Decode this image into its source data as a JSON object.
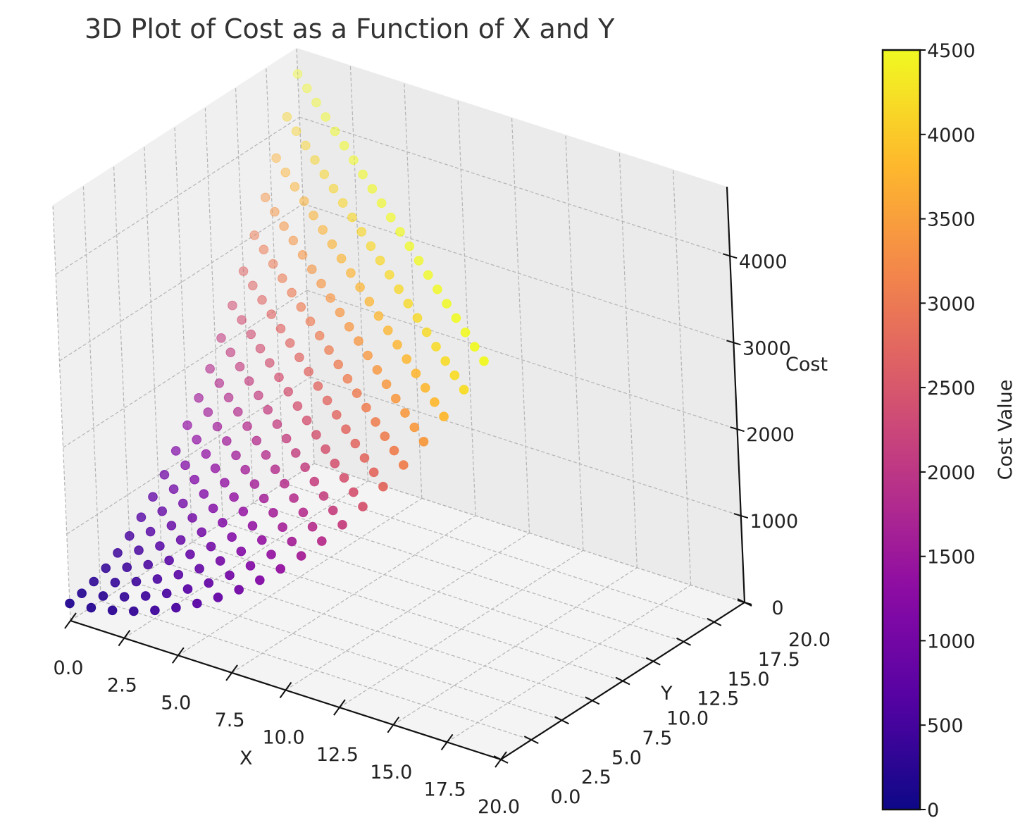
{
  "chart_data": {
    "type": "scatter3d",
    "title": "3D Plot of Cost as a Function of X and Y",
    "xlabel": "X",
    "ylabel": "Y",
    "zlabel": "Cost",
    "colorbar_label": "Cost Value",
    "colormap": "plasma",
    "x_ticks": [
      "0.0",
      "2.5",
      "5.0",
      "7.5",
      "10.0",
      "12.5",
      "15.0",
      "17.5",
      "20.0"
    ],
    "y_ticks": [
      "0.0",
      "2.5",
      "5.0",
      "7.5",
      "10.0",
      "12.5",
      "15.0",
      "17.5",
      "20.0"
    ],
    "z_ticks": [
      "0",
      "1000",
      "2000",
      "3000",
      "4000"
    ],
    "colorbar_ticks": [
      "0",
      "500",
      "1000",
      "1500",
      "2000",
      "2500",
      "3000",
      "3500",
      "4000",
      "4500"
    ],
    "x_range": [
      0,
      20
    ],
    "y_range": [
      0,
      20
    ],
    "z_range": [
      0,
      4800
    ],
    "color_range": [
      0,
      4500
    ],
    "grid": "integer x, y from 0 to 20 with x + y <= 20",
    "points": "cost = 10*(x + y)^2 + 20*x + 15*y + 200 (approximate)",
    "cost_model": {
      "quadratic": 10,
      "x_linear": 20,
      "y_linear": 15,
      "constant": 200
    }
  },
  "colors": {
    "pane": "#f2f2f2",
    "grid": "#b4b4b4",
    "axis": "#111111",
    "text": "#222222",
    "title": "#333333"
  }
}
